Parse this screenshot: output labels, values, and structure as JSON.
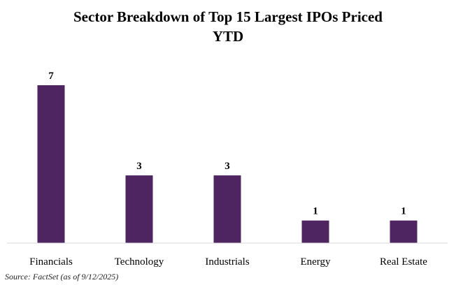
{
  "chart_data": {
    "type": "bar",
    "title_lines": [
      "Sector Breakdown of Top 15 Largest IPOs Priced",
      "YTD"
    ],
    "categories": [
      "Financials",
      "Technology",
      "Industrials",
      "Energy",
      "Real Estate"
    ],
    "values": [
      7,
      3,
      3,
      1,
      1
    ],
    "data_labels": [
      "7",
      "3",
      "3",
      "1",
      "1"
    ],
    "xlabel": "",
    "ylabel": "",
    "ylim": [
      0,
      7
    ],
    "grid": false,
    "legend": "none",
    "bar_color": "#4e2461"
  },
  "source": "Source: FactSet (as of 9/12/2025)"
}
